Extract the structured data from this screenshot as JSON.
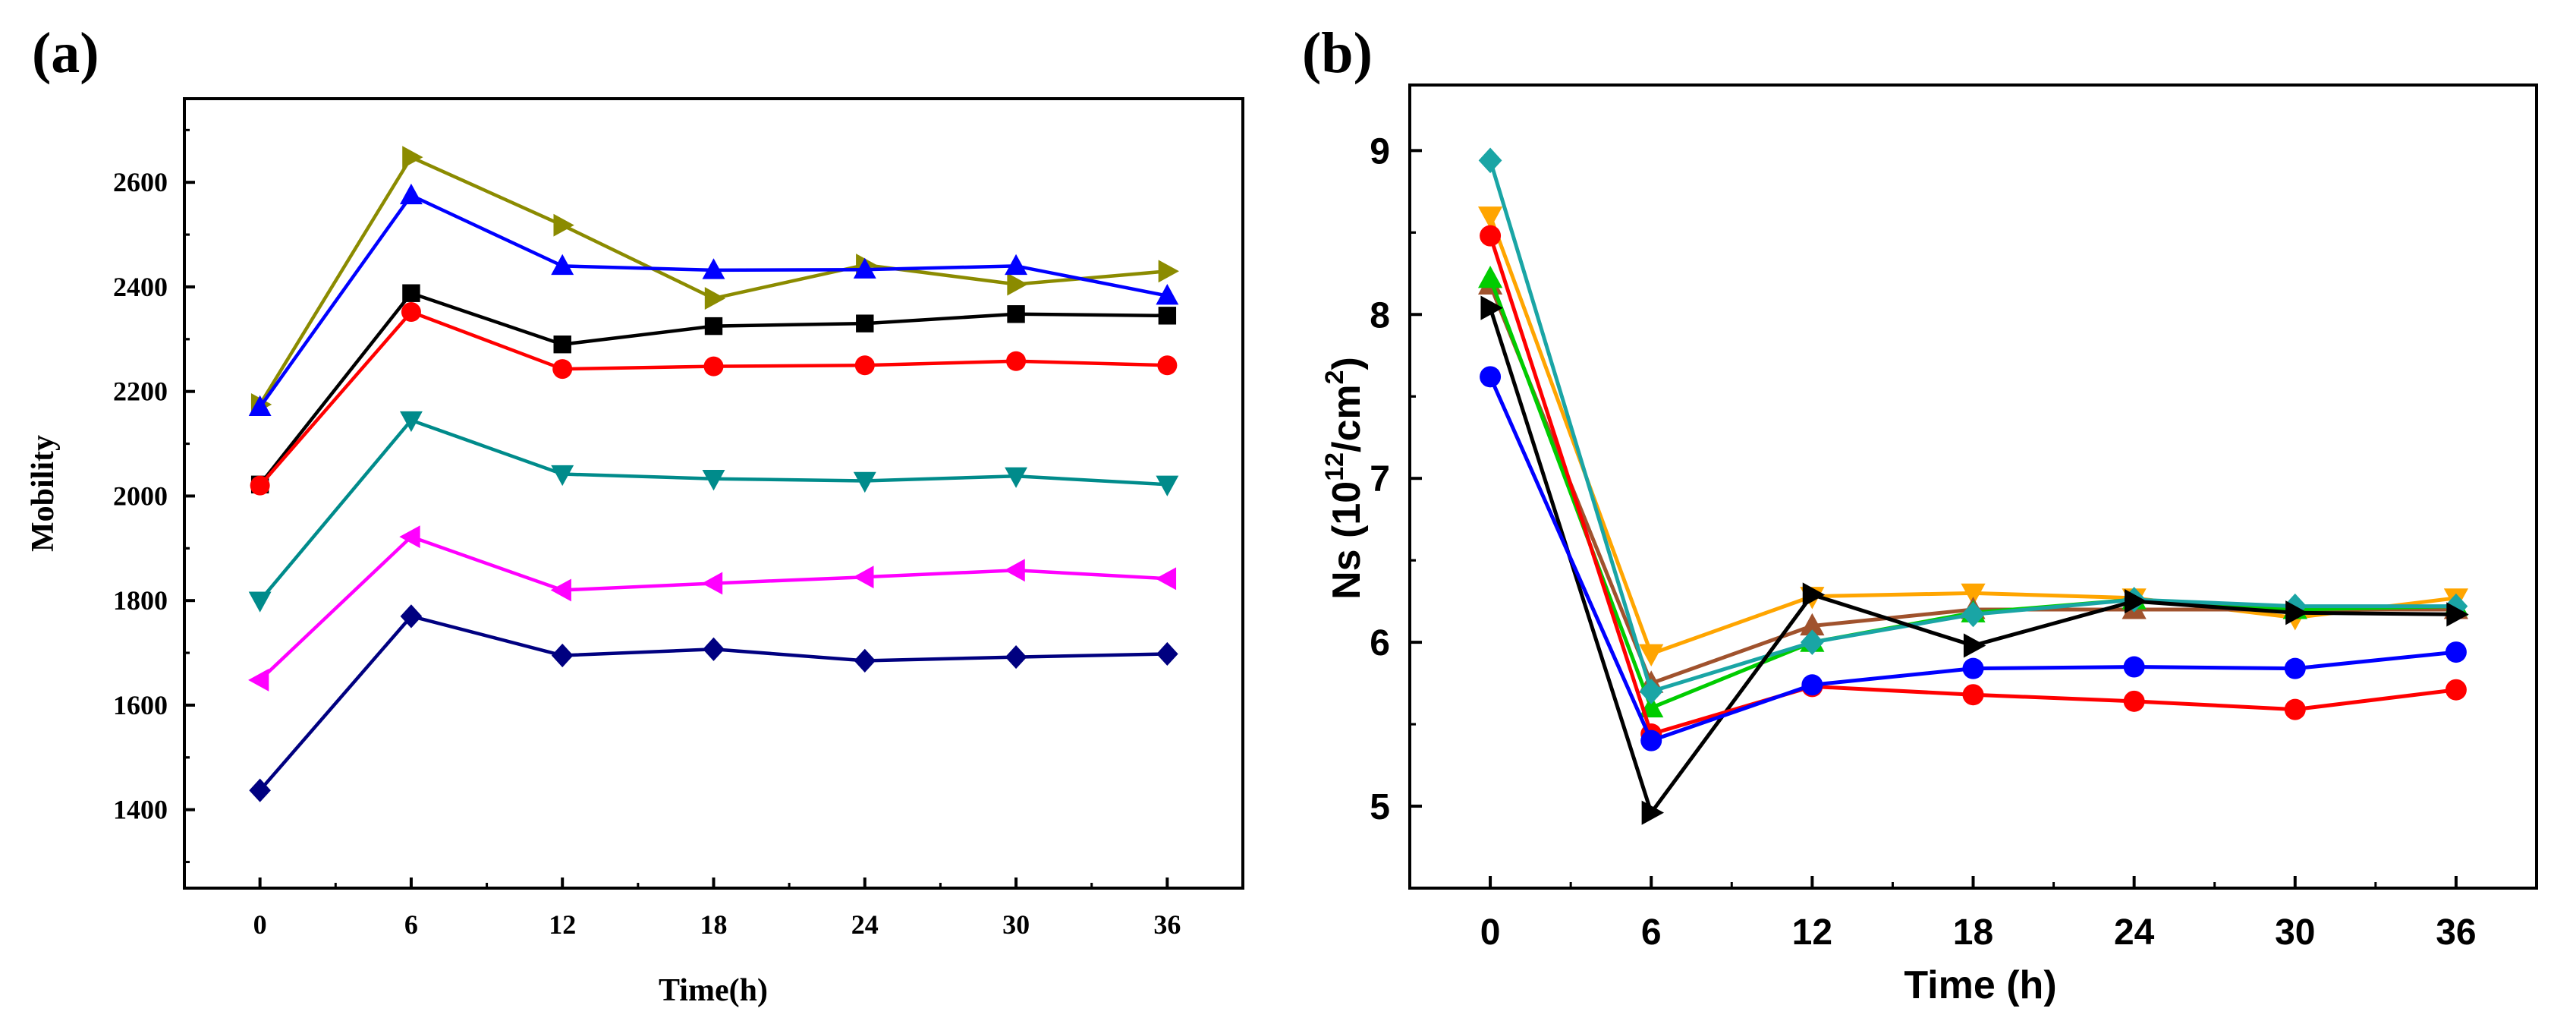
{
  "chart_data": [
    {
      "panel_label": "(a)",
      "type": "line",
      "title": "",
      "xlabel": "Time(h)",
      "ylabel": "Mobility",
      "x": [
        0,
        6,
        12,
        18,
        24,
        30,
        36
      ],
      "x_tick_labels": [
        "0",
        "6",
        "12",
        "18",
        "24",
        "30",
        "36"
      ],
      "xlim": [
        -3,
        39
      ],
      "ylim": [
        1250,
        2760
      ],
      "y_ticks": [
        1400,
        1600,
        1800,
        2000,
        2200,
        2400,
        2600
      ],
      "y_tick_labels": [
        "1400",
        "1600",
        "1800",
        "2000",
        "2200",
        "2400",
        "2600"
      ],
      "grid": false,
      "series": [
        {
          "name": "series-olive",
          "color": "#8b8b00",
          "marker": "triangle-right",
          "values": [
            2175,
            2648,
            2518,
            2378,
            2442,
            2405,
            2430
          ]
        },
        {
          "name": "series-blue",
          "color": "#0000ff",
          "marker": "triangle-up",
          "values": [
            2170,
            2575,
            2440,
            2432,
            2433,
            2440,
            2383
          ]
        },
        {
          "name": "series-black",
          "color": "#000000",
          "marker": "square",
          "values": [
            2022,
            2388,
            2290,
            2325,
            2330,
            2348,
            2345
          ]
        },
        {
          "name": "series-red",
          "color": "#ff0000",
          "marker": "circle",
          "values": [
            2020,
            2352,
            2243,
            2248,
            2250,
            2258,
            2250
          ]
        },
        {
          "name": "series-teal",
          "color": "#008b8b",
          "marker": "triangle-down",
          "values": [
            1800,
            2145,
            2042,
            2033,
            2029,
            2038,
            2022
          ]
        },
        {
          "name": "series-magenta",
          "color": "#ff00ff",
          "marker": "triangle-left",
          "values": [
            1648,
            1922,
            1820,
            1833,
            1845,
            1858,
            1842
          ]
        },
        {
          "name": "series-navy",
          "color": "#000080",
          "marker": "diamond",
          "values": [
            1437,
            1770,
            1695,
            1707,
            1685,
            1692,
            1698
          ]
        }
      ]
    },
    {
      "panel_label": "(b)",
      "type": "line",
      "title": "",
      "xlabel": "Time (h)",
      "ylabel": "Ns (10",
      "ylabel_superscript": "12",
      "ylabel_suffix": "/cm",
      "ylabel_suffix_superscript": "2",
      "ylabel_close": ")",
      "x": [
        0,
        6,
        12,
        18,
        24,
        30,
        36
      ],
      "x_tick_labels": [
        "0",
        "6",
        "12",
        "18",
        "24",
        "30",
        "36"
      ],
      "xlim": [
        -3,
        39
      ],
      "ylim": [
        4.5,
        9.4
      ],
      "y_ticks": [
        5,
        6,
        7,
        8,
        9
      ],
      "y_tick_labels": [
        "5",
        "6",
        "7",
        "8",
        "9"
      ],
      "grid": false,
      "series": [
        {
          "name": "series-orange",
          "color": "#ffa500",
          "marker": "triangle-down",
          "values": [
            8.6,
            5.93,
            6.28,
            6.3,
            6.27,
            6.15,
            6.27
          ]
        },
        {
          "name": "series-brown",
          "color": "#a0522d",
          "marker": "triangle-up",
          "values": [
            8.18,
            5.75,
            6.1,
            6.2,
            6.2,
            6.2,
            6.2
          ]
        },
        {
          "name": "series-green",
          "color": "#00cc00",
          "marker": "triangle-up",
          "values": [
            8.22,
            5.6,
            6.0,
            6.18,
            6.26,
            6.2,
            6.22
          ]
        },
        {
          "name": "series-cyan",
          "color": "#1aa5a5",
          "marker": "diamond",
          "values": [
            8.94,
            5.7,
            6.0,
            6.17,
            6.26,
            6.22,
            6.22
          ]
        },
        {
          "name": "series-black",
          "color": "#000000",
          "marker": "triangle-right",
          "values": [
            8.04,
            4.96,
            6.29,
            5.98,
            6.25,
            6.18,
            6.17
          ]
        },
        {
          "name": "series-red",
          "color": "#ff0000",
          "marker": "circle",
          "values": [
            8.48,
            5.44,
            5.73,
            5.68,
            5.64,
            5.59,
            5.71
          ]
        },
        {
          "name": "series-blue",
          "color": "#0000ff",
          "marker": "circle",
          "values": [
            7.62,
            5.4,
            5.74,
            5.84,
            5.85,
            5.84,
            5.94
          ]
        }
      ]
    }
  ]
}
